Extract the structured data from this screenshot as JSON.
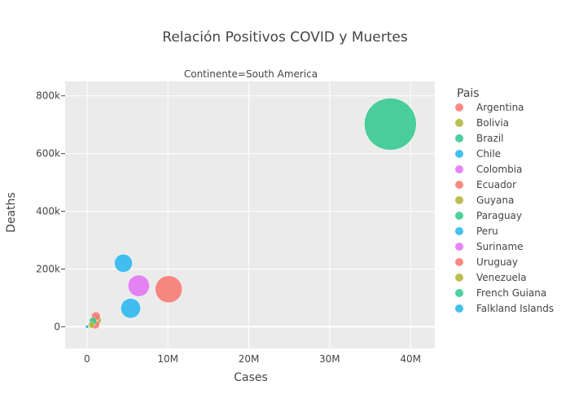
{
  "chart_data": {
    "type": "scatter",
    "title": "Relación Positivos COVID y Muertes",
    "facet_label": "Continente=South America",
    "xlabel": "Cases",
    "ylabel": "Deaths",
    "xlim": [
      -2700000,
      43000000
    ],
    "ylim": [
      -75000,
      850000
    ],
    "x_ticks": [
      0,
      10000000,
      20000000,
      30000000,
      40000000
    ],
    "x_tick_labels": [
      "0",
      "10M",
      "20M",
      "30M",
      "40M"
    ],
    "y_ticks": [
      0,
      200000,
      400000,
      600000,
      800000
    ],
    "y_tick_labels": [
      "0",
      "200k",
      "400k",
      "600k",
      "800k"
    ],
    "background": "#ebebeb",
    "grid": true,
    "legend_title": "Pais",
    "legend_position": "right",
    "series": [
      {
        "name": "Argentina",
        "color": "#f8766d",
        "x": 10100000,
        "y": 130000,
        "size": 10100000
      },
      {
        "name": "Bolivia",
        "color": "#b0b335",
        "x": 1200000,
        "y": 22500,
        "size": 1200000
      },
      {
        "name": "Brazil",
        "color": "#2dc88c",
        "x": 37500000,
        "y": 702000,
        "size": 37500000
      },
      {
        "name": "Chile",
        "color": "#25b5f0",
        "x": 5400000,
        "y": 64000,
        "size": 5400000
      },
      {
        "name": "Colombia",
        "color": "#e271f3",
        "x": 6400000,
        "y": 142000,
        "size": 6400000
      },
      {
        "name": "Ecuador",
        "color": "#f8766d",
        "x": 1100000,
        "y": 36000,
        "size": 1100000
      },
      {
        "name": "Guyana",
        "color": "#b0b335",
        "x": 73000,
        "y": 1300,
        "size": 73000
      },
      {
        "name": "Paraguay",
        "color": "#2dc88c",
        "x": 740000,
        "y": 19900,
        "size": 740000
      },
      {
        "name": "Peru",
        "color": "#25b5f0",
        "x": 4500000,
        "y": 220000,
        "size": 4500000
      },
      {
        "name": "Suriname",
        "color": "#e271f3",
        "x": 82000,
        "y": 1400,
        "size": 82000
      },
      {
        "name": "Uruguay",
        "color": "#f8766d",
        "x": 1030000,
        "y": 7600,
        "size": 1030000
      },
      {
        "name": "Venezuela",
        "color": "#b0b335",
        "x": 550000,
        "y": 5800,
        "size": 550000
      },
      {
        "name": "French Guiana",
        "color": "#2dc88c",
        "x": 98000,
        "y": 420,
        "size": 98000
      },
      {
        "name": "Falkland Islands",
        "color": "#25b5f0",
        "x": 1930,
        "y": 0,
        "size": 1930
      }
    ]
  }
}
